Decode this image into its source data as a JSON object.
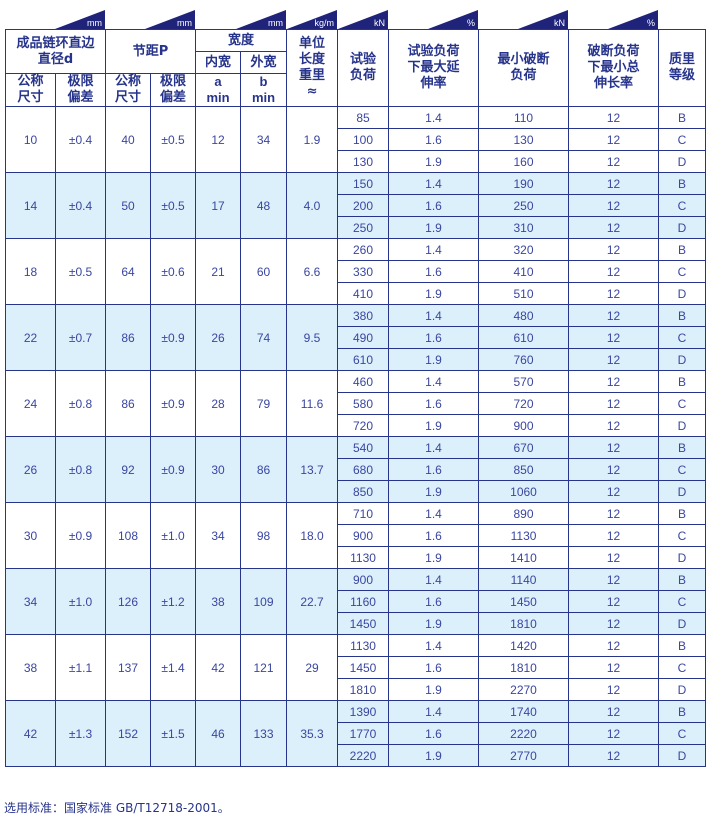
{
  "units": [
    "mm",
    "mm",
    "mm",
    "kg/m",
    "kN",
    "%",
    "kN",
    "%"
  ],
  "header": {
    "diameter": "成品链环直边直径d",
    "pitch": "节距P",
    "width": "宽度",
    "weight": "单位长度重里≈",
    "test_load": "试验负荷",
    "test_elong": "试验负荷下最大延伸率",
    "min_break": "最小破断负荷",
    "break_elong": "破断负荷下最小总伸长率",
    "grade": "质里等级",
    "nominal": "公称尺寸",
    "tolerance": "极限偏差",
    "inner": "内宽",
    "outer": "外宽",
    "a": "a min",
    "b": "b min"
  },
  "groups": [
    {
      "d": "10",
      "dtol": "±0.4",
      "p": "40",
      "ptol": "±0.5",
      "a": "12",
      "b": "34",
      "w": "1.9",
      "rows": [
        [
          "85",
          "1.4",
          "110",
          "12",
          "B"
        ],
        [
          "100",
          "1.6",
          "130",
          "12",
          "C"
        ],
        [
          "130",
          "1.9",
          "160",
          "12",
          "D"
        ]
      ]
    },
    {
      "d": "14",
      "dtol": "±0.4",
      "p": "50",
      "ptol": "±0.5",
      "a": "17",
      "b": "48",
      "w": "4.0",
      "rows": [
        [
          "150",
          "1.4",
          "190",
          "12",
          "B"
        ],
        [
          "200",
          "1.6",
          "250",
          "12",
          "C"
        ],
        [
          "250",
          "1.9",
          "310",
          "12",
          "D"
        ]
      ]
    },
    {
      "d": "18",
      "dtol": "±0.5",
      "p": "64",
      "ptol": "±0.6",
      "a": "21",
      "b": "60",
      "w": "6.6",
      "rows": [
        [
          "260",
          "1.4",
          "320",
          "12",
          "B"
        ],
        [
          "330",
          "1.6",
          "410",
          "12",
          "C"
        ],
        [
          "410",
          "1.9",
          "510",
          "12",
          "D"
        ]
      ]
    },
    {
      "d": "22",
      "dtol": "±0.7",
      "p": "86",
      "ptol": "±0.9",
      "a": "26",
      "b": "74",
      "w": "9.5",
      "rows": [
        [
          "380",
          "1.4",
          "480",
          "12",
          "B"
        ],
        [
          "490",
          "1.6",
          "610",
          "12",
          "C"
        ],
        [
          "610",
          "1.9",
          "760",
          "12",
          "D"
        ]
      ]
    },
    {
      "d": "24",
      "dtol": "±0.8",
      "p": "86",
      "ptol": "±0.9",
      "a": "28",
      "b": "79",
      "w": "11.6",
      "rows": [
        [
          "460",
          "1.4",
          "570",
          "12",
          "B"
        ],
        [
          "580",
          "1.6",
          "720",
          "12",
          "C"
        ],
        [
          "720",
          "1.9",
          "900",
          "12",
          "D"
        ]
      ]
    },
    {
      "d": "26",
      "dtol": "±0.8",
      "p": "92",
      "ptol": "±0.9",
      "a": "30",
      "b": "86",
      "w": "13.7",
      "rows": [
        [
          "540",
          "1.4",
          "670",
          "12",
          "B"
        ],
        [
          "680",
          "1.6",
          "850",
          "12",
          "C"
        ],
        [
          "850",
          "1.9",
          "1060",
          "12",
          "D"
        ]
      ]
    },
    {
      "d": "30",
      "dtol": "±0.9",
      "p": "108",
      "ptol": "±1.0",
      "a": "34",
      "b": "98",
      "w": "18.0",
      "rows": [
        [
          "710",
          "1.4",
          "890",
          "12",
          "B"
        ],
        [
          "900",
          "1.6",
          "1130",
          "12",
          "C"
        ],
        [
          "1130",
          "1.9",
          "1410",
          "12",
          "D"
        ]
      ]
    },
    {
      "d": "34",
      "dtol": "±1.0",
      "p": "126",
      "ptol": "±1.2",
      "a": "38",
      "b": "109",
      "w": "22.7",
      "rows": [
        [
          "900",
          "1.4",
          "1140",
          "12",
          "B"
        ],
        [
          "1160",
          "1.6",
          "1450",
          "12",
          "C"
        ],
        [
          "1450",
          "1.9",
          "1810",
          "12",
          "D"
        ]
      ]
    },
    {
      "d": "38",
      "dtol": "±1.1",
      "p": "137",
      "ptol": "±1.4",
      "a": "42",
      "b": "121",
      "w": "29",
      "rows": [
        [
          "1130",
          "1.4",
          "1420",
          "12",
          "B"
        ],
        [
          "1450",
          "1.6",
          "1810",
          "12",
          "C"
        ],
        [
          "1810",
          "1.9",
          "2270",
          "12",
          "D"
        ]
      ]
    },
    {
      "d": "42",
      "dtol": "±1.3",
      "p": "152",
      "ptol": "±1.5",
      "a": "46",
      "b": "133",
      "w": "35.3",
      "rows": [
        [
          "1390",
          "1.4",
          "1740",
          "12",
          "B"
        ],
        [
          "1770",
          "1.6",
          "2220",
          "12",
          "C"
        ],
        [
          "2220",
          "1.9",
          "2770",
          "12",
          "D"
        ]
      ]
    }
  ],
  "footer": "选用标准：国家标准 GB/T12718-2001。"
}
